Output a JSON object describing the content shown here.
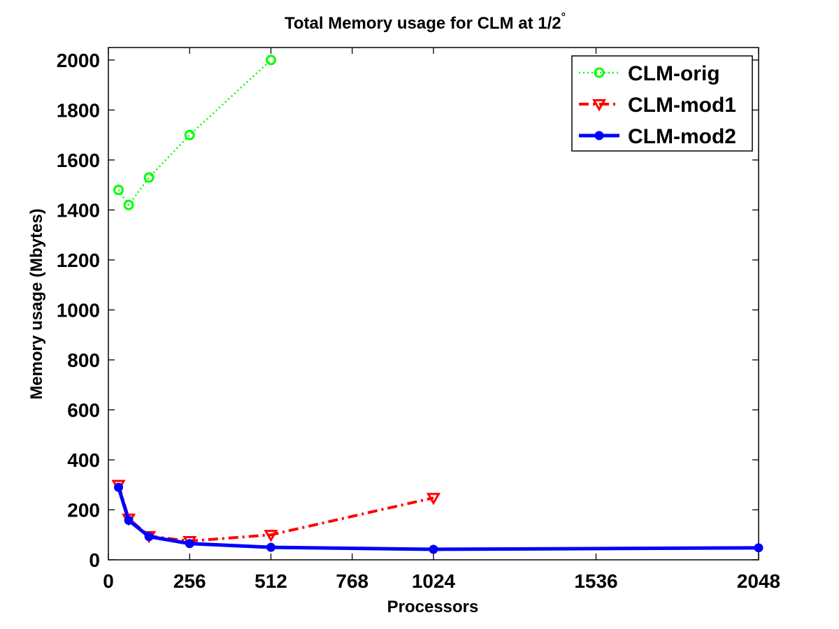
{
  "chart_data": {
    "type": "line",
    "title": "Total Memory usage for CLM at 1/2",
    "title_superscript": "°",
    "xlabel": "Processors",
    "ylabel": "Memory usage (Mbytes)",
    "xlim": [
      0,
      2048
    ],
    "ylim": [
      0,
      2050
    ],
    "xticks": [
      0,
      256,
      512,
      768,
      1024,
      1536,
      2048
    ],
    "yticks": [
      0,
      200,
      400,
      600,
      800,
      1000,
      1200,
      1400,
      1600,
      1800,
      2000
    ],
    "grid": false,
    "legend_position": "top-right",
    "series": [
      {
        "name": "CLM-orig",
        "color": "#00ff00",
        "line_style": "dotted",
        "marker": "circle-open",
        "x": [
          32,
          64,
          128,
          256,
          512
        ],
        "y": [
          1480,
          1420,
          1530,
          1700,
          2000
        ]
      },
      {
        "name": "CLM-mod1",
        "color": "#ff0000",
        "line_style": "dash-dot",
        "marker": "triangle-down",
        "x": [
          32,
          64,
          128,
          256,
          512,
          1024
        ],
        "y": [
          300,
          165,
          95,
          75,
          100,
          248
        ]
      },
      {
        "name": "CLM-mod2",
        "color": "#0000ff",
        "line_style": "solid",
        "marker": "circle-filled",
        "x": [
          32,
          64,
          128,
          256,
          512,
          1024,
          2048
        ],
        "y": [
          290,
          158,
          93,
          65,
          50,
          42,
          48
        ]
      }
    ]
  }
}
